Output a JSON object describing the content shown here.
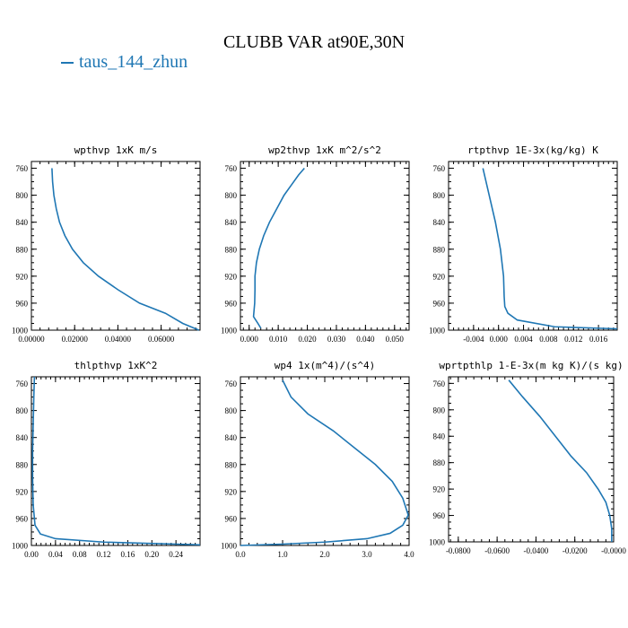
{
  "title": "CLUBB VAR at90E,30N",
  "legend": {
    "label": "taus_144_zhun",
    "color": "#1f77b4"
  },
  "chart_data": [
    {
      "type": "line",
      "title": "wpthvp   1xK m/s",
      "ylim": [
        1000,
        750
      ],
      "yticks": [
        "760",
        "800",
        "840",
        "880",
        "920",
        "960",
        "1000"
      ],
      "xlim": [
        0,
        0.078
      ],
      "xticks": [
        "0.00000",
        "0.02000",
        "0.04000",
        "0.06000"
      ],
      "xtick_values": [
        0,
        0.02,
        0.04,
        0.06
      ],
      "series": [
        {
          "color": "#1f77b4",
          "points": [
            [
              0.0095,
              760
            ],
            [
              0.0098,
              780
            ],
            [
              0.0104,
              800
            ],
            [
              0.0115,
              820
            ],
            [
              0.013,
              840
            ],
            [
              0.0155,
              860
            ],
            [
              0.019,
              880
            ],
            [
              0.024,
              900
            ],
            [
              0.031,
              920
            ],
            [
              0.04,
              940
            ],
            [
              0.05,
              960
            ],
            [
              0.062,
              975
            ],
            [
              0.07,
              990
            ],
            [
              0.0775,
              1000
            ]
          ]
        }
      ]
    },
    {
      "type": "line",
      "title": "wp2thvp   1xK m^2/s^2",
      "ylim": [
        1000,
        750
      ],
      "yticks": [
        "760",
        "800",
        "840",
        "880",
        "920",
        "960",
        "1000"
      ],
      "xlim": [
        -0.003,
        0.055
      ],
      "xticks": [
        "0.000",
        "0.010",
        "0.020",
        "0.030",
        "0.040",
        "0.050"
      ],
      "xtick_values": [
        0,
        0.01,
        0.02,
        0.03,
        0.04,
        0.05
      ],
      "series": [
        {
          "color": "#1f77b4",
          "points": [
            [
              0.019,
              760
            ],
            [
              0.017,
              770
            ],
            [
              0.0145,
              785
            ],
            [
              0.012,
              800
            ],
            [
              0.0095,
              820
            ],
            [
              0.007,
              840
            ],
            [
              0.005,
              860
            ],
            [
              0.0035,
              880
            ],
            [
              0.0025,
              900
            ],
            [
              0.002,
              920
            ],
            [
              0.002,
              940
            ],
            [
              0.0019,
              960
            ],
            [
              0.0015,
              980
            ],
            [
              0.003,
              990
            ],
            [
              0.004,
              997
            ]
          ]
        }
      ]
    },
    {
      "type": "line",
      "title": "rtpthvp   1E-3x(kg/kg) K",
      "ylim": [
        1000,
        750
      ],
      "yticks": [
        "760",
        "800",
        "840",
        "880",
        "920",
        "960",
        "1000"
      ],
      "xlim": [
        -0.008,
        0.019
      ],
      "xticks": [
        "-0.004",
        "0.000",
        "0.004",
        "0.008",
        "0.012",
        "0.016"
      ],
      "xtick_values": [
        -0.004,
        0,
        0.004,
        0.008,
        0.012,
        0.016
      ],
      "series": [
        {
          "color": "#1f77b4",
          "points": [
            [
              -0.0025,
              760
            ],
            [
              -0.0015,
              800
            ],
            [
              -0.0005,
              840
            ],
            [
              0.0003,
              880
            ],
            [
              0.0008,
              920
            ],
            [
              0.0009,
              950
            ],
            [
              0.001,
              965
            ],
            [
              0.0015,
              975
            ],
            [
              0.003,
              985
            ],
            [
              0.009,
              995
            ],
            [
              0.019,
              998
            ]
          ]
        }
      ]
    },
    {
      "type": "line",
      "title": "thlpthvp   1xK^2",
      "ylim": [
        1000,
        750
      ],
      "yticks": [
        "760",
        "800",
        "840",
        "880",
        "920",
        "960",
        "1000"
      ],
      "xlim": [
        0,
        0.28
      ],
      "xticks": [
        "0.00",
        "0.04",
        "0.08",
        "0.12",
        "0.16",
        "0.20",
        "0.24"
      ],
      "xtick_values": [
        0,
        0.04,
        0.08,
        0.12,
        0.16,
        0.2,
        0.24
      ],
      "series": [
        {
          "color": "#1f77b4",
          "points": [
            [
              0.005,
              750
            ],
            [
              0.004,
              780
            ],
            [
              0.003,
              820
            ],
            [
              0.002,
              860
            ],
            [
              0.002,
              900
            ],
            [
              0.003,
              940
            ],
            [
              0.006,
              970
            ],
            [
              0.015,
              983
            ],
            [
              0.04,
              990
            ],
            [
              0.12,
              995
            ],
            [
              0.28,
              999
            ]
          ]
        }
      ]
    },
    {
      "type": "line",
      "title": "wp4   1x(m^4)/(s^4)",
      "ylim": [
        1000,
        750
      ],
      "yticks": [
        "760",
        "800",
        "840",
        "880",
        "920",
        "960",
        "1000"
      ],
      "xlim": [
        0,
        4.0
      ],
      "xticks": [
        "0.0",
        "1.0",
        "2.0",
        "3.0",
        "4.0"
      ],
      "xtick_values": [
        0,
        1,
        2,
        3,
        4
      ],
      "series": [
        {
          "color": "#1f77b4",
          "points": [
            [
              1.0,
              755
            ],
            [
              1.2,
              780
            ],
            [
              1.6,
              805
            ],
            [
              2.2,
              830
            ],
            [
              2.7,
              855
            ],
            [
              3.2,
              880
            ],
            [
              3.6,
              905
            ],
            [
              3.85,
              930
            ],
            [
              3.98,
              955
            ],
            [
              3.85,
              970
            ],
            [
              3.55,
              982
            ],
            [
              3.0,
              990
            ],
            [
              2.0,
              995
            ],
            [
              1.0,
              998
            ],
            [
              0.0,
              1000
            ]
          ]
        }
      ]
    },
    {
      "type": "line",
      "title": "wprtpthlp   1-E-3x(m kg K)/(s kg)",
      "ylim": [
        1000,
        750
      ],
      "yticks": [
        "760",
        "800",
        "840",
        "880",
        "920",
        "960",
        "1000"
      ],
      "xlim": [
        -0.085,
        0.0
      ],
      "xticks": [
        "-0.0800",
        "-0.0600",
        "-0.0400",
        "-0.0200",
        "-0.0000"
      ],
      "xtick_values": [
        -0.08,
        -0.06,
        -0.04,
        -0.02,
        0
      ],
      "series": [
        {
          "color": "#1f77b4",
          "points": [
            [
              -0.054,
              755
            ],
            [
              -0.047,
              780
            ],
            [
              -0.038,
              810
            ],
            [
              -0.03,
              840
            ],
            [
              -0.022,
              870
            ],
            [
              -0.014,
              895
            ],
            [
              -0.008,
              920
            ],
            [
              -0.004,
              940
            ],
            [
              -0.002,
              960
            ],
            [
              -0.001,
              980
            ],
            [
              -0.001,
              1000
            ]
          ]
        }
      ]
    }
  ]
}
